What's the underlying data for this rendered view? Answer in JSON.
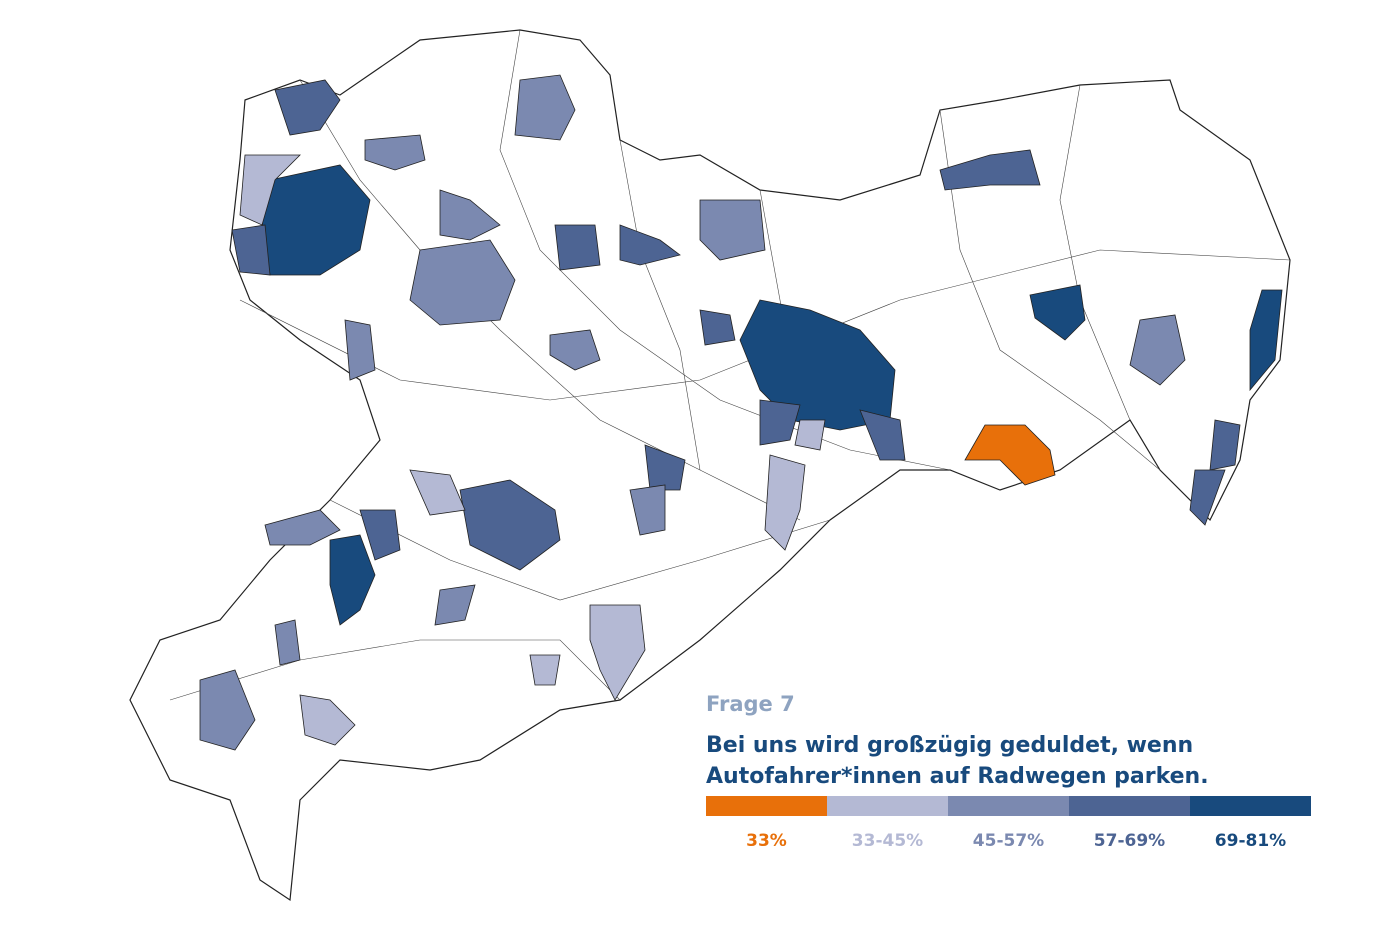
{
  "question": {
    "label": "Frage 7",
    "title_lines": [
      "Bei uns wird großzügig geduldet, wenn",
      "Autofahrer*innen auf Radwegen parken."
    ]
  },
  "legend": [
    {
      "label": "33%",
      "color": "#e8700a"
    },
    {
      "label": "33-45%",
      "color": "#b4b9d4"
    },
    {
      "label": "45-57%",
      "color": "#7b89b0"
    },
    {
      "label": "57-69%",
      "color": "#4d6493"
    },
    {
      "label": "69-81%",
      "color": "#184a7d"
    }
  ]
}
